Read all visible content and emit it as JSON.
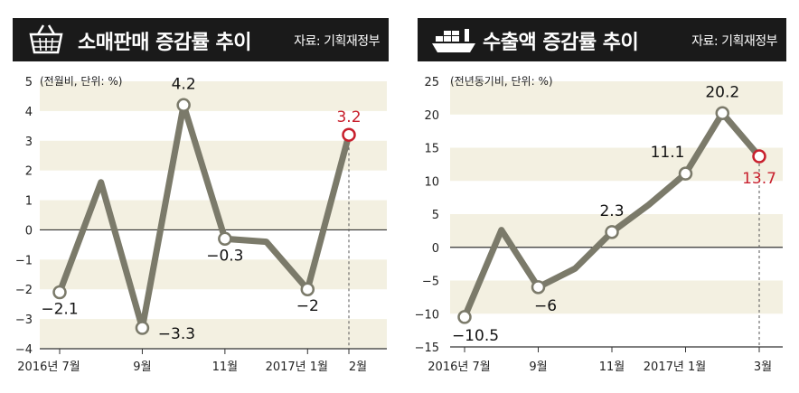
{
  "colors": {
    "header_bg": "#1a1a1a",
    "band": "#f3f0e1",
    "line": "#7b7a6a",
    "highlight": "#c8202d",
    "text": "#222222"
  },
  "panels": [
    {
      "title": "소매판매 증감률 추이",
      "source": "자료: 기획재정부",
      "icon": "shopping-basket-icon",
      "unit_label": "(전월비, 단위: %)"
    },
    {
      "title": "수출액 증감률 추이",
      "source": "자료: 기획재정부",
      "icon": "cargo-ship-icon",
      "unit_label": "(전년동기비, 단위: %)"
    }
  ],
  "chart_data": [
    {
      "type": "line",
      "title": "소매판매 증감률 추이",
      "ylim": [
        -4,
        5
      ],
      "yticks": [
        5,
        4,
        3,
        2,
        1,
        0,
        -1,
        -2,
        -3,
        -4
      ],
      "x": [
        "2016-07",
        "2016-08",
        "2016-09",
        "2016-10",
        "2016-11",
        "2016-12",
        "2017-01",
        "2017-02"
      ],
      "xtick_labels": [
        "2016년 7월",
        "9월",
        "11월",
        "2017년 1월",
        "2월"
      ],
      "xtick_index": [
        0,
        2,
        4,
        6,
        7
      ],
      "values": [
        -2.1,
        1.6,
        -3.3,
        4.2,
        -0.3,
        -0.4,
        -2.0,
        3.2
      ],
      "data_labels": [
        {
          "index": 0,
          "text": "-2.1"
        },
        {
          "index": 2,
          "text": "-3.3"
        },
        {
          "index": 3,
          "text": "4.2"
        },
        {
          "index": 4,
          "text": "-0.3"
        },
        {
          "index": 6,
          "text": "-2"
        },
        {
          "index": 7,
          "text": "3.2",
          "highlight": true
        }
      ],
      "grid": "alternating horizontal bands"
    },
    {
      "type": "line",
      "title": "수출액 증감률 추이",
      "ylim": [
        -15,
        25
      ],
      "yticks": [
        25,
        20,
        15,
        10,
        5,
        0,
        -5,
        -10,
        -15
      ],
      "x": [
        "2016-07",
        "2016-08",
        "2016-09",
        "2016-10",
        "2016-11",
        "2016-12",
        "2017-01",
        "2017-02",
        "2017-03"
      ],
      "xtick_labels": [
        "2016년 7월",
        "9월",
        "11월",
        "2017년 1월",
        "3월"
      ],
      "xtick_index": [
        0,
        2,
        4,
        6,
        8
      ],
      "values": [
        -10.5,
        2.6,
        -6.0,
        -3.2,
        2.3,
        6.4,
        11.1,
        20.2,
        13.7
      ],
      "data_labels": [
        {
          "index": 0,
          "text": "-10.5"
        },
        {
          "index": 2,
          "text": "-6"
        },
        {
          "index": 4,
          "text": "2.3"
        },
        {
          "index": 6,
          "text": "11.1"
        },
        {
          "index": 7,
          "text": "20.2"
        },
        {
          "index": 8,
          "text": "13.7",
          "highlight": true
        }
      ],
      "grid": "alternating horizontal bands"
    }
  ]
}
